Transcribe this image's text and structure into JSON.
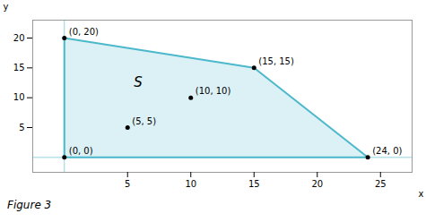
{
  "chart_data": {
    "type": "feasible_region",
    "caption": "Figure 3",
    "xlabel": "x",
    "ylabel": "y",
    "xlim": [
      -2.5,
      27.5
    ],
    "ylim": [
      -2.5,
      23
    ],
    "xticks": [
      5,
      10,
      15,
      20,
      25
    ],
    "yticks": [
      5,
      10,
      15,
      20
    ],
    "series": [
      {
        "type": "area",
        "color": "#4bb8cc",
        "x": [
          0,
          0,
          15,
          24
        ],
        "y": [
          0,
          20,
          15,
          0
        ]
      },
      {
        "type": "scatter",
        "x": [
          0,
          15,
          24,
          0,
          5,
          10
        ],
        "y": [
          20,
          15,
          0,
          0,
          5,
          10
        ],
        "labels": [
          "(0, 20)",
          "(15, 15)",
          "(24, 0)",
          "(0, 0)",
          "(5, 5)",
          "(10, 10)"
        ]
      }
    ],
    "annotations": [
      {
        "text": "S",
        "x": 5.5,
        "y": 12.5
      }
    ]
  }
}
